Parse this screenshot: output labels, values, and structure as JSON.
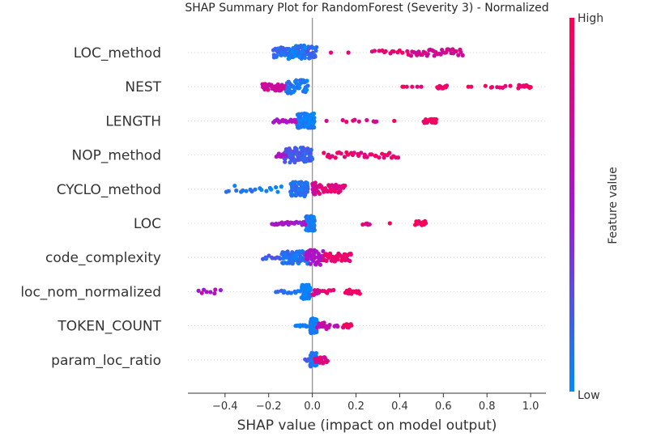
{
  "chart_data": {
    "type": "scatter",
    "subtype": "shap-beeswarm",
    "title": "SHAP Summary Plot for RandomForest (Severity 3) - Normalized",
    "xlabel": "SHAP value (impact on model output)",
    "xlim": [
      -0.57,
      1.07
    ],
    "xticks": [
      -0.4,
      -0.2,
      0.0,
      0.2,
      0.4,
      0.6,
      0.8,
      1.0
    ],
    "xtick_labels": [
      "−0.4",
      "−0.2",
      "0.0",
      "0.2",
      "0.4",
      "0.6",
      "0.8",
      "1.0"
    ],
    "colorbar": {
      "label": "Feature value",
      "high": "High",
      "low": "Low",
      "low_color": "#008bfb",
      "high_color": "#ff0052",
      "mid_color": "#a515d0"
    },
    "features": [
      {
        "name": "LOC_method",
        "clusters": [
          {
            "x0": -0.18,
            "x1": 0.02,
            "n": 90,
            "spread": 0.55,
            "color": 0.15
          },
          {
            "x0": -0.11,
            "x1": -0.03,
            "n": 30,
            "spread": 0.65,
            "color": 0.05
          },
          {
            "x0": 0.08,
            "x1": 0.09,
            "n": 1,
            "spread": 0.0,
            "color": 0.85
          },
          {
            "x0": 0.16,
            "x1": 0.17,
            "n": 1,
            "spread": 0.0,
            "color": 0.95
          },
          {
            "x0": 0.27,
            "x1": 0.45,
            "n": 14,
            "spread": 0.2,
            "color": 0.88
          },
          {
            "x0": 0.45,
            "x1": 0.69,
            "n": 38,
            "spread": 0.3,
            "color": 0.75
          }
        ]
      },
      {
        "name": "NEST",
        "clusters": [
          {
            "x0": -0.23,
            "x1": -0.12,
            "n": 45,
            "spread": 0.35,
            "color": 0.7
          },
          {
            "x0": -0.12,
            "x1": -0.02,
            "n": 45,
            "spread": 0.6,
            "color": 0.1
          },
          {
            "x0": 0.4,
            "x1": 0.46,
            "n": 4,
            "spread": 0.0,
            "color": 0.95
          },
          {
            "x0": 0.48,
            "x1": 0.5,
            "n": 2,
            "spread": 0.0,
            "color": 0.9
          },
          {
            "x0": 0.57,
            "x1": 0.62,
            "n": 10,
            "spread": 0.15,
            "color": 0.95
          },
          {
            "x0": 0.71,
            "x1": 0.73,
            "n": 2,
            "spread": 0.0,
            "color": 0.95
          },
          {
            "x0": 0.79,
            "x1": 0.91,
            "n": 8,
            "spread": 0.1,
            "color": 0.9
          },
          {
            "x0": 0.94,
            "x1": 1.0,
            "n": 12,
            "spread": 0.15,
            "color": 0.92
          }
        ]
      },
      {
        "name": "LENGTH",
        "clusters": [
          {
            "x0": -0.07,
            "x1": 0.01,
            "n": 90,
            "spread": 0.65,
            "color": 0.05
          },
          {
            "x0": -0.18,
            "x1": -0.07,
            "n": 16,
            "spread": 0.15,
            "color": 0.55
          },
          {
            "x0": 0.06,
            "x1": 0.07,
            "n": 1,
            "spread": 0.0,
            "color": 0.8
          },
          {
            "x0": 0.12,
            "x1": 0.26,
            "n": 6,
            "spread": 0.1,
            "color": 0.85
          },
          {
            "x0": 0.28,
            "x1": 0.3,
            "n": 3,
            "spread": 0.1,
            "color": 0.75
          },
          {
            "x0": 0.37,
            "x1": 0.38,
            "n": 1,
            "spread": 0.0,
            "color": 0.95
          },
          {
            "x0": 0.51,
            "x1": 0.57,
            "n": 16,
            "spread": 0.2,
            "color": 0.95
          }
        ]
      },
      {
        "name": "NOP_method",
        "clusters": [
          {
            "x0": -0.13,
            "x1": 0.0,
            "n": 95,
            "spread": 0.65,
            "color": 0.2
          },
          {
            "x0": -0.17,
            "x1": -0.12,
            "n": 8,
            "spread": 0.15,
            "color": 0.55
          },
          {
            "x0": 0.05,
            "x1": 0.4,
            "n": 35,
            "spread": 0.25,
            "color": 0.88
          }
        ]
      },
      {
        "name": "CYCLO_method",
        "clusters": [
          {
            "x0": -0.1,
            "x1": -0.02,
            "n": 80,
            "spread": 0.65,
            "color": 0.12
          },
          {
            "x0": -0.4,
            "x1": -0.13,
            "n": 18,
            "spread": 0.3,
            "color": 0.08
          },
          {
            "x0": 0.0,
            "x1": 0.02,
            "n": 20,
            "spread": 0.6,
            "color": 0.7
          },
          {
            "x0": 0.02,
            "x1": 0.15,
            "n": 35,
            "spread": 0.4,
            "color": 0.85
          }
        ]
      },
      {
        "name": "LOC",
        "clusters": [
          {
            "x0": -0.03,
            "x1": 0.01,
            "n": 90,
            "spread": 0.65,
            "color": 0.05
          },
          {
            "x0": -0.19,
            "x1": -0.03,
            "n": 22,
            "spread": 0.15,
            "color": 0.5
          },
          {
            "x0": 0.23,
            "x1": 0.27,
            "n": 5,
            "spread": 0.15,
            "color": 0.8
          },
          {
            "x0": 0.35,
            "x1": 0.36,
            "n": 1,
            "spread": 0.0,
            "color": 0.95
          },
          {
            "x0": 0.47,
            "x1": 0.52,
            "n": 14,
            "spread": 0.2,
            "color": 0.95
          }
        ]
      },
      {
        "name": "code_complexity",
        "clusters": [
          {
            "x0": -0.14,
            "x1": -0.02,
            "n": 70,
            "spread": 0.55,
            "color": 0.1
          },
          {
            "x0": -0.23,
            "x1": -0.14,
            "n": 10,
            "spread": 0.2,
            "color": 0.2
          },
          {
            "x0": -0.03,
            "x1": 0.05,
            "n": 40,
            "spread": 0.65,
            "color": 0.55
          },
          {
            "x0": 0.05,
            "x1": 0.18,
            "n": 40,
            "spread": 0.35,
            "color": 0.88
          }
        ]
      },
      {
        "name": "loc_nom_normalized",
        "clusters": [
          {
            "x0": -0.05,
            "x1": -0.01,
            "n": 60,
            "spread": 0.65,
            "color": 0.05
          },
          {
            "x0": -0.53,
            "x1": -0.42,
            "n": 8,
            "spread": 0.2,
            "color": 0.55
          },
          {
            "x0": -0.17,
            "x1": -0.05,
            "n": 12,
            "spread": 0.15,
            "color": 0.15
          },
          {
            "x0": 0.0,
            "x1": 0.03,
            "n": 10,
            "spread": 0.3,
            "color": 0.75
          },
          {
            "x0": 0.03,
            "x1": 0.1,
            "n": 8,
            "spread": 0.15,
            "color": 0.85
          },
          {
            "x0": 0.15,
            "x1": 0.22,
            "n": 14,
            "spread": 0.2,
            "color": 0.92
          }
        ]
      },
      {
        "name": "TOKEN_COUNT",
        "clusters": [
          {
            "x0": -0.01,
            "x1": 0.02,
            "n": 70,
            "spread": 0.65,
            "color": 0.05
          },
          {
            "x0": -0.08,
            "x1": -0.02,
            "n": 10,
            "spread": 0.1,
            "color": 0.05
          },
          {
            "x0": 0.02,
            "x1": 0.08,
            "n": 16,
            "spread": 0.3,
            "color": 0.65
          },
          {
            "x0": 0.1,
            "x1": 0.12,
            "n": 4,
            "spread": 0.1,
            "color": 0.6
          },
          {
            "x0": 0.14,
            "x1": 0.18,
            "n": 14,
            "spread": 0.15,
            "color": 0.92
          }
        ]
      },
      {
        "name": "param_loc_ratio",
        "clusters": [
          {
            "x0": -0.01,
            "x1": 0.02,
            "n": 55,
            "spread": 0.6,
            "color": 0.1
          },
          {
            "x0": -0.04,
            "x1": -0.01,
            "n": 4,
            "spread": 0.1,
            "color": 0.2
          },
          {
            "x0": 0.01,
            "x1": 0.07,
            "n": 18,
            "spread": 0.3,
            "color": 0.8
          }
        ]
      }
    ]
  }
}
